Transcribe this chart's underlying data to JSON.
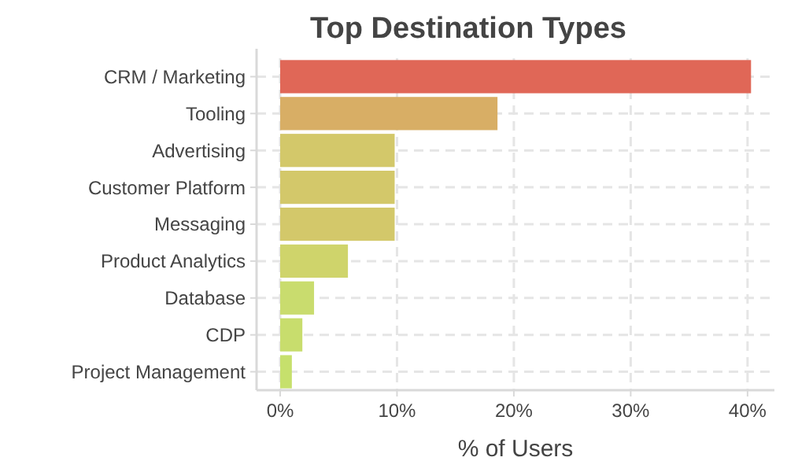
{
  "chart_data": {
    "type": "bar",
    "orientation": "horizontal",
    "title": "Top Destination Types",
    "xlabel": "% of Users",
    "categories": [
      "CRM / Marketing",
      "Tooling",
      "Advertising",
      "Customer Platform",
      "Messaging",
      "Product Analytics",
      "Database",
      "CDP",
      "Project Management"
    ],
    "values": [
      40.3,
      18.6,
      9.8,
      9.8,
      9.8,
      5.8,
      2.9,
      1.9,
      1.0
    ],
    "colors": [
      "#e06757",
      "#d8ae65",
      "#d3c86a",
      "#d3c86a",
      "#d3c86a",
      "#cfd46b",
      "#c9dc6e",
      "#c8dd6d",
      "#c6e06c"
    ],
    "xlim": [
      -2.02,
      42.3
    ],
    "xticks": [
      {
        "value": 0,
        "label": "0%"
      },
      {
        "value": 10,
        "label": "10%"
      },
      {
        "value": 20,
        "label": "20%"
      },
      {
        "value": 30,
        "label": "30%"
      },
      {
        "value": 40,
        "label": "40%"
      }
    ],
    "grid": true
  }
}
